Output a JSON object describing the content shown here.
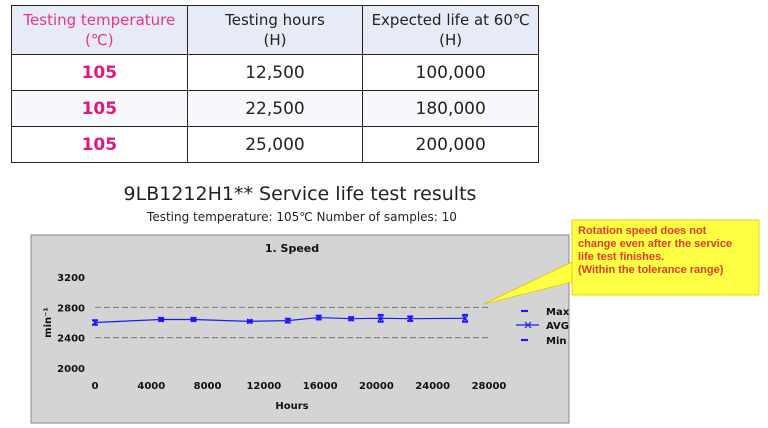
{
  "table": {
    "headers": [
      {
        "line1": "Testing temperature",
        "line2": "(℃)"
      },
      {
        "line1": "Testing hours",
        "line2": "(H)"
      },
      {
        "line1": "Expected life at 60℃",
        "line2": "(H)"
      }
    ],
    "rows": [
      {
        "temp": "105",
        "hours": "12,500",
        "life": "100,000"
      },
      {
        "temp": "105",
        "hours": "22,500",
        "life": "180,000"
      },
      {
        "temp": "105",
        "hours": "25,000",
        "life": "200,000"
      }
    ]
  },
  "title": "9LB1212H1**  Service life test results",
  "subtitle": "Testing temperature: 105℃   Number of samples: 10",
  "callout": {
    "lines": [
      "Rotation speed does not",
      "change even after the service",
      "life test finishes.",
      "(Within the tolerance range)"
    ],
    "colors": {
      "fill": "#ffff44",
      "text": "#e23b2c"
    }
  },
  "chart_data": {
    "type": "line",
    "title": "1. Speed",
    "xlabel": "Hours",
    "ylabel": "min⁻¹",
    "xlim": [
      0,
      28000
    ],
    "ylim": [
      2000,
      3200
    ],
    "xticks": [
      0,
      4000,
      8000,
      12000,
      16000,
      20000,
      24000,
      28000
    ],
    "yticks": [
      2000,
      2400,
      2800,
      3200
    ],
    "tolerance_lines": [
      2400,
      2800
    ],
    "x": [
      0,
      4700,
      7000,
      11000,
      13700,
      15900,
      18200,
      20300,
      22400,
      26300
    ],
    "series": [
      {
        "name": "Max",
        "values": [
          2630,
          2660,
          2660,
          2630,
          2650,
          2690,
          2670,
          2700,
          2680,
          2700
        ]
      },
      {
        "name": "AVG",
        "values": [
          2600,
          2640,
          2640,
          2615,
          2625,
          2665,
          2650,
          2655,
          2650,
          2655
        ]
      },
      {
        "name": "Min",
        "values": [
          2570,
          2620,
          2620,
          2600,
          2600,
          2640,
          2630,
          2610,
          2620,
          2610
        ]
      }
    ],
    "legend": [
      "Max",
      "AVG",
      "Min"
    ],
    "legend_position": "right",
    "grid": false,
    "colors": {
      "series": "#1a1aff",
      "tolerance": "#777777",
      "plot_bg": "#cfcfcf"
    }
  }
}
